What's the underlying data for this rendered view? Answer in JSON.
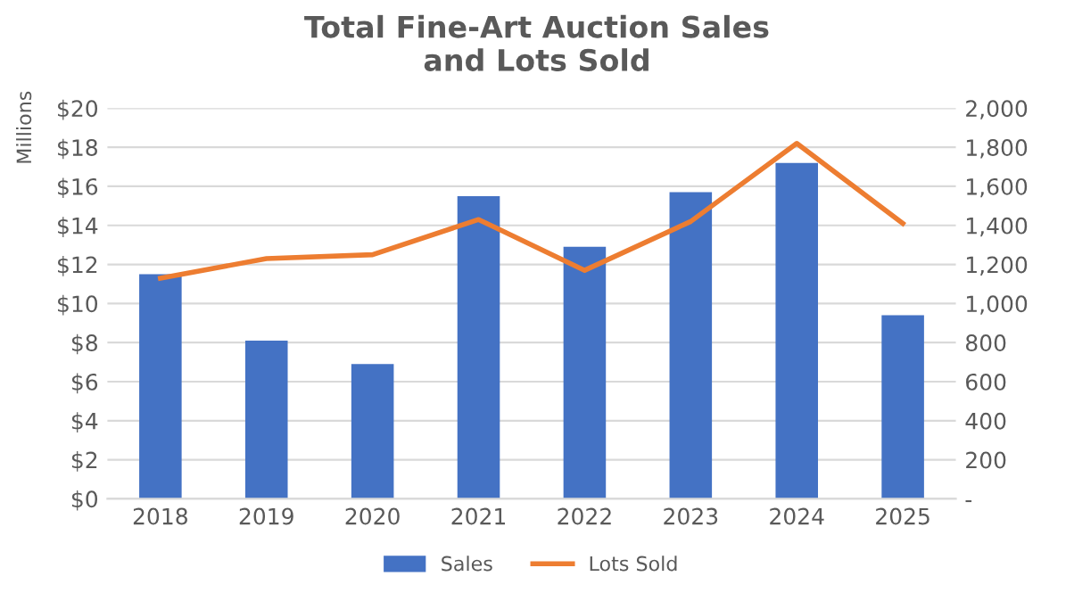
{
  "chart_data": {
    "type": "bar",
    "title": "Total Fine-Art Auction Sales\nand Lots Sold",
    "ylabel": "Millions",
    "categories": [
      "2018",
      "2019",
      "2020",
      "2021",
      "2022",
      "2023",
      "2024",
      "2025"
    ],
    "series": [
      {
        "name": "Sales",
        "color": "#4472c4",
        "values": [
          11.5,
          8.1,
          6.9,
          15.5,
          12.9,
          15.7,
          17.2,
          9.4
        ]
      },
      {
        "name": "Lots Sold",
        "type": "line",
        "axis": "y2",
        "color": "#ed7d31",
        "values": [
          1130,
          1230,
          1250,
          1430,
          1170,
          1420,
          1820,
          1410
        ]
      }
    ],
    "ylim": [
      0,
      20
    ],
    "yticks": [
      {
        "value": 0,
        "label": "$0"
      },
      {
        "value": 2,
        "label": "$2"
      },
      {
        "value": 4,
        "label": "$4"
      },
      {
        "value": 6,
        "label": "$6"
      },
      {
        "value": 8,
        "label": "$8"
      },
      {
        "value": 10,
        "label": "$10"
      },
      {
        "value": 12,
        "label": "$12"
      },
      {
        "value": 14,
        "label": "$14"
      },
      {
        "value": 16,
        "label": "$16"
      },
      {
        "value": 18,
        "label": "$18"
      },
      {
        "value": 20,
        "label": "$20"
      }
    ],
    "y2lim": [
      0,
      2000
    ],
    "y2ticks": [
      {
        "value": 0,
        "label": "-"
      },
      200,
      400,
      600,
      800,
      {
        "value": 1000,
        "label": "1,000"
      },
      {
        "value": 1200,
        "label": "1,200"
      },
      {
        "value": 1400,
        "label": "1,400"
      },
      {
        "value": 1600,
        "label": "1,600"
      },
      {
        "value": 1800,
        "label": "1,800"
      },
      {
        "value": 2000,
        "label": "2,000"
      }
    ],
    "grid": "y",
    "legend": "bottom",
    "marker": "none",
    "line_style": "solid"
  }
}
